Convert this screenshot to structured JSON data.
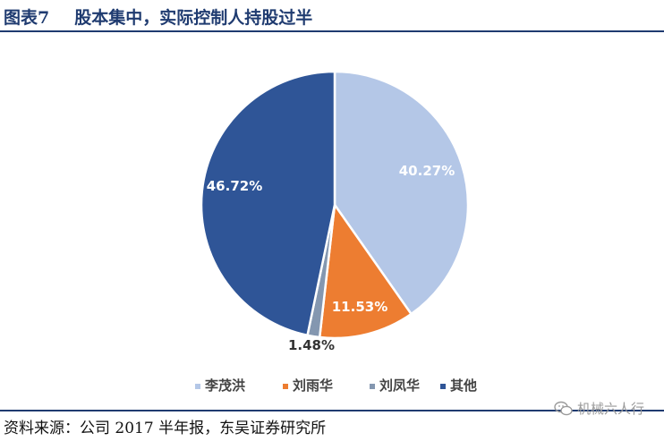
{
  "header": {
    "figure_no": "图表7",
    "title": "股本集中，实际控制人持股过半"
  },
  "colors": {
    "accent": "#1f3b70"
  },
  "chart_data": {
    "type": "pie",
    "title": "",
    "categories": [
      "李茂洪",
      "刘雨华",
      "刘凤华",
      "其他"
    ],
    "values": [
      40.27,
      11.53,
      1.48,
      46.72
    ],
    "labels": [
      "40.27%",
      "11.53%",
      "1.48%",
      "46.72%"
    ],
    "colors": [
      "#b4c7e7",
      "#ed7d31",
      "#8497b0",
      "#2f5597"
    ],
    "legend_position": "bottom"
  },
  "footer": {
    "source": "资料来源：公司 2017 半年报，东吴证券研究所"
  },
  "watermark": {
    "text": "机械六人行",
    "icon": "wechat-icon"
  }
}
